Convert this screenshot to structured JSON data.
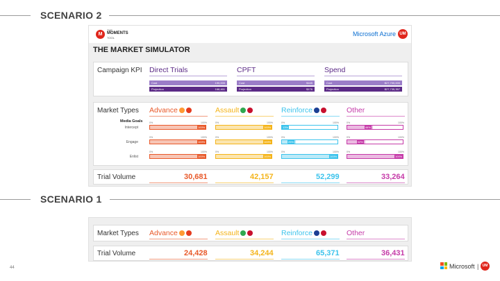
{
  "scenario2": {
    "title": "SCENARIO 2"
  },
  "scenario1": {
    "title": "SCENARIO 1"
  },
  "logo": {
    "top": "THE",
    "main": "MOMENTS",
    "bottom": "TOOL"
  },
  "um_badge": "UM",
  "azure": "Microsoft Azure",
  "sim_title": "THE MARKET SIMULATOR",
  "kpi": {
    "label": "Campaign KPI",
    "columns": [
      {
        "title": "Direct Trials",
        "cost_label": "Cost",
        "cost_value": "190,000",
        "proj_label": "Projection",
        "proj_value": "168,461"
      },
      {
        "title": "CPFT",
        "cost_label": "Cost",
        "cost_value": "$165",
        "proj_label": "Projection",
        "proj_value": "$176"
      },
      {
        "title": "Spend",
        "cost_label": "Cost",
        "cost_value": "$27,700,000",
        "proj_label": "Projection",
        "proj_value": "$27,735,357"
      }
    ]
  },
  "market": {
    "label": "Market Types",
    "goals_title": "Media Goals",
    "goals": [
      "Intercept",
      "Engage",
      "Enlist"
    ],
    "tick_min": "0%",
    "tick_max": "100%",
    "columns": [
      {
        "title": "Advance",
        "color": "#e8592a",
        "levels": [
          1.0,
          1.0,
          1.0
        ],
        "pct_labels": [
          "100%",
          "100%",
          "100%"
        ]
      },
      {
        "title": "Assault",
        "color": "#f4b41a",
        "levels": [
          1.0,
          1.0,
          1.0
        ],
        "pct_labels": [
          "100%",
          "100%",
          "100%"
        ]
      },
      {
        "title": "Reinforce",
        "color": "#3cc3ec",
        "levels": [
          0.13,
          0.25,
          1.0
        ],
        "pct_labels": [
          "13%",
          "25%",
          "100%"
        ]
      },
      {
        "title": "Other",
        "color": "#c53aa8",
        "levels": [
          0.46,
          0.32,
          1.0
        ],
        "pct_labels": [
          "46%",
          "32%",
          "100%"
        ]
      }
    ]
  },
  "trial_volume": {
    "label": "Trial Volume",
    "scenario2_values": [
      "30,681",
      "42,157",
      "52,299",
      "33,264"
    ],
    "scenario1_values": [
      "24,428",
      "34,244",
      "65,371",
      "36,431"
    ]
  },
  "colors": {
    "kpi_cost": "#9b7dc8",
    "kpi_proj": "#5b2a86"
  },
  "footer": {
    "page": "44",
    "microsoft": "Microsoft",
    "sep": "|",
    "um": "UM"
  }
}
